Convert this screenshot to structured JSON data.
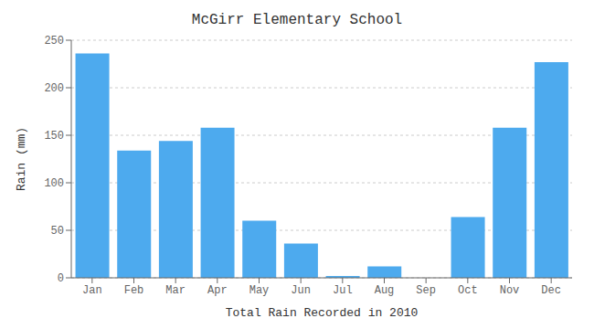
{
  "chart_data": {
    "type": "bar",
    "title": "McGirr Elementary School",
    "xlabel": "Total Rain Recorded in 2010",
    "ylabel": "Rain (mm)",
    "categories": [
      "Jan",
      "Feb",
      "Mar",
      "Apr",
      "May",
      "Jun",
      "Jul",
      "Aug",
      "Sep",
      "Oct",
      "Nov",
      "Dec"
    ],
    "values": [
      236,
      134,
      144,
      158,
      60,
      36,
      2,
      12,
      0,
      64,
      158,
      227
    ],
    "color": "#4daaee",
    "ylim": [
      0,
      250
    ],
    "yticks": [
      0,
      50,
      100,
      150,
      200,
      250
    ],
    "grid": true
  }
}
